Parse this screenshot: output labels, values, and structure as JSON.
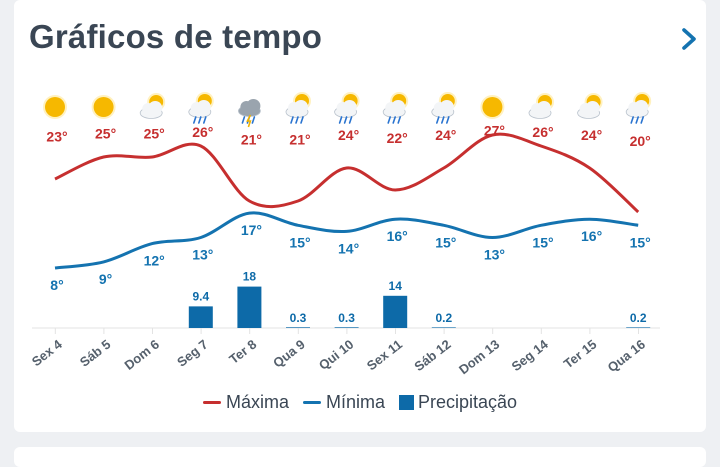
{
  "header": {
    "title": "Gráficos de tempo",
    "next_icon": "chevron-right-icon"
  },
  "legend": {
    "max_label": "Máxima",
    "min_label": "Mínima",
    "precip_label": "Precipitação"
  },
  "colors": {
    "max": "#c62f2f",
    "min": "#1473b0",
    "precip": "#0d6aa8",
    "grid": "#e3e3e3"
  },
  "chart_data": {
    "type": "line",
    "categories": [
      "Sex 4",
      "Sáb 5",
      "Dom 6",
      "Seg 7",
      "Ter 8",
      "Qua 9",
      "Qui 10",
      "Sex 11",
      "Sáb 12",
      "Dom 13",
      "Seg 14",
      "Ter 15",
      "Qua 16"
    ],
    "weather_icons": [
      "sunny",
      "sunny",
      "partly-cloudy",
      "sun-rain",
      "storm",
      "sun-rain",
      "sun-rain",
      "sun-rain",
      "sun-rain",
      "sunny",
      "partly-cloudy",
      "partly-cloudy",
      "sun-rain"
    ],
    "series": [
      {
        "name": "Máxima",
        "values": [
          23,
          25,
          25,
          26,
          21,
          21,
          24,
          22,
          24,
          27,
          26,
          24,
          20
        ],
        "labels": [
          "23°",
          "25°",
          "25°",
          "26°",
          "21°",
          "21°",
          "24°",
          "22°",
          "24°",
          "27°",
          "26°",
          "24°",
          "20°"
        ]
      },
      {
        "name": "Mínima",
        "values": [
          8,
          9,
          12,
          13,
          17,
          15,
          14,
          16,
          15,
          13,
          15,
          16,
          15
        ],
        "labels": [
          "8°",
          "9°",
          "12°",
          "13°",
          "17°",
          "15°",
          "14°",
          "16°",
          "15°",
          "13°",
          "15°",
          "16°",
          "15°"
        ]
      },
      {
        "name": "Precipitação",
        "type": "bar",
        "values": [
          0,
          0,
          0,
          9.4,
          18,
          0.3,
          0.3,
          14,
          0.2,
          0,
          0,
          0,
          0.2
        ],
        "labels": [
          "",
          "",
          "",
          "9.4",
          "18",
          "0.3",
          "0.3",
          "14",
          "0.2",
          "",
          "",
          "",
          "0.2"
        ]
      }
    ]
  }
}
